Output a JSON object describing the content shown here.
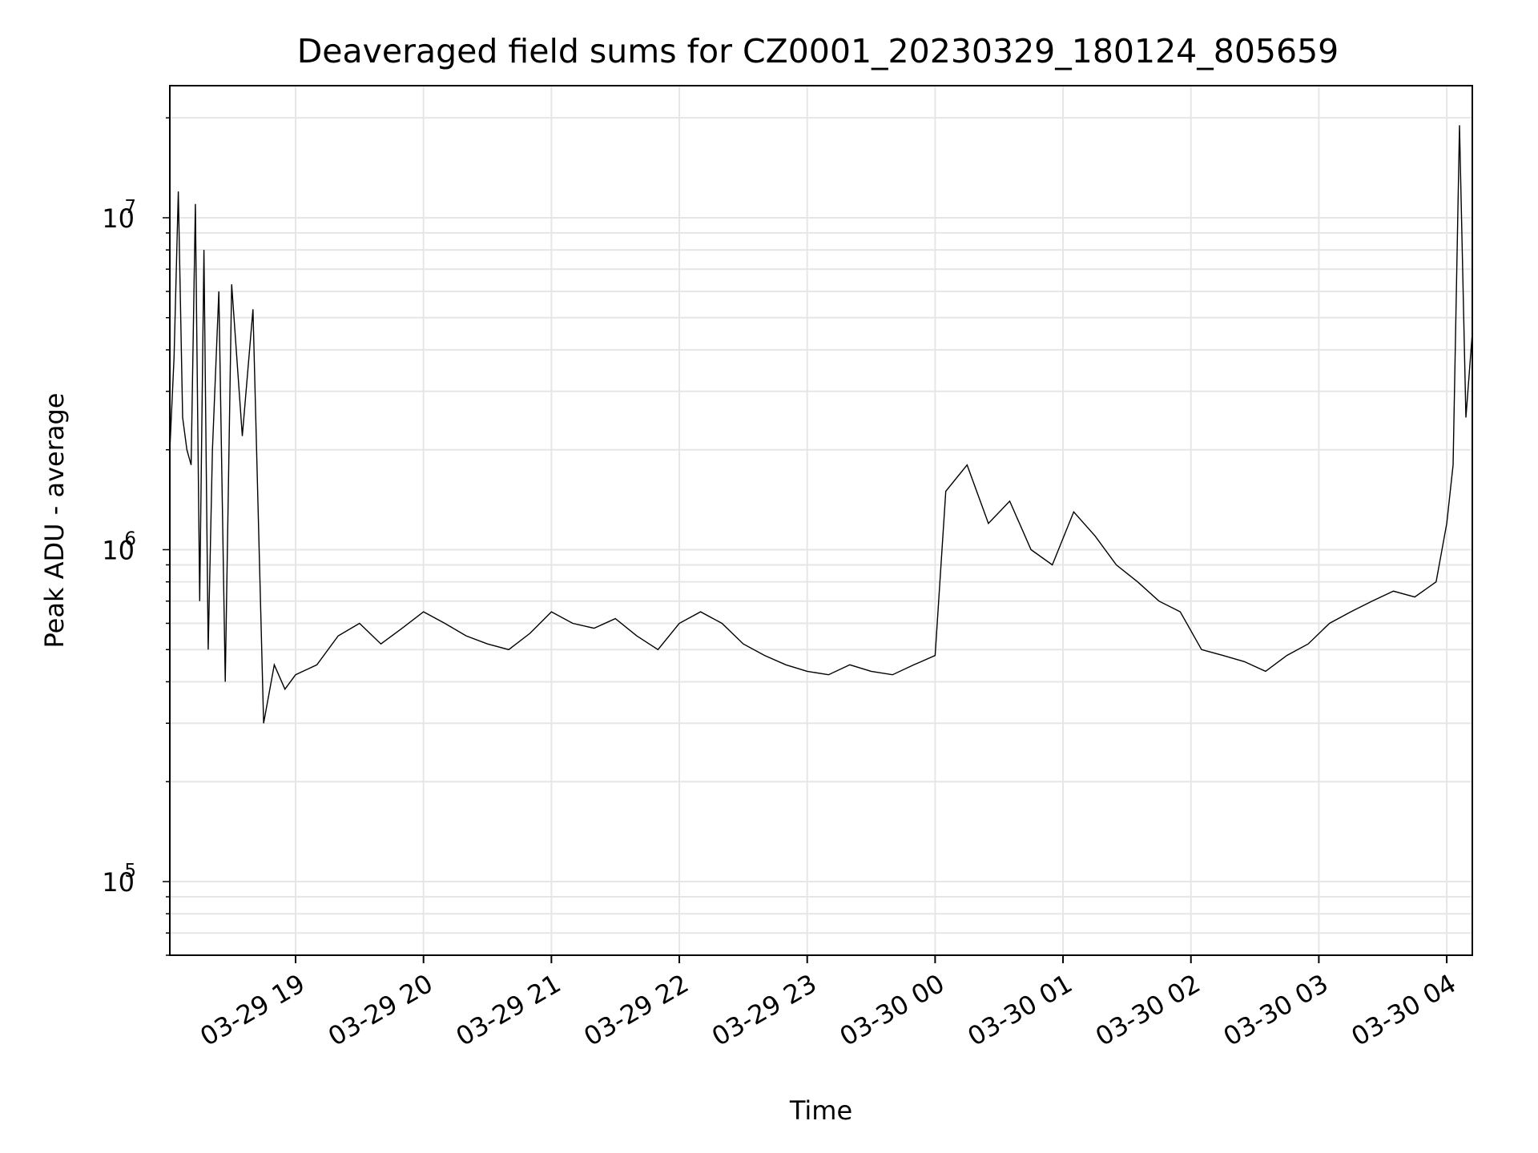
{
  "chart_data": {
    "type": "line",
    "title": "Deaveraged field sums for CZ0001_20230329_180124_805659",
    "xlabel": "Time",
    "ylabel": "Peak ADU - average",
    "yscale": "log",
    "ylim": [
      60000,
      25000000
    ],
    "xlim": [
      "2023-03-29 18:01",
      "2023-03-30 04:12"
    ],
    "grid": true,
    "line_color": "#000000",
    "x_ticks": [
      {
        "time": "2023-03-29 19:00",
        "label": "03-29 19"
      },
      {
        "time": "2023-03-29 20:00",
        "label": "03-29 20"
      },
      {
        "time": "2023-03-29 21:00",
        "label": "03-29 21"
      },
      {
        "time": "2023-03-29 22:00",
        "label": "03-29 22"
      },
      {
        "time": "2023-03-29 23:00",
        "label": "03-29 23"
      },
      {
        "time": "2023-03-30 00:00",
        "label": "03-30 00"
      },
      {
        "time": "2023-03-30 01:00",
        "label": "03-30 01"
      },
      {
        "time": "2023-03-30 02:00",
        "label": "03-30 02"
      },
      {
        "time": "2023-03-30 03:00",
        "label": "03-30 03"
      },
      {
        "time": "2023-03-30 04:00",
        "label": "03-30 04"
      }
    ],
    "y_ticks": [
      {
        "value": 100000,
        "base": "10",
        "exp": "5"
      },
      {
        "value": 1000000,
        "base": "10",
        "exp": "6"
      },
      {
        "value": 10000000,
        "base": "10",
        "exp": "7"
      }
    ],
    "series": [
      {
        "x": [
          "2023-03-29 18:01",
          "2023-03-29 18:03",
          "2023-03-29 18:05",
          "2023-03-29 18:07",
          "2023-03-29 18:09",
          "2023-03-29 18:11",
          "2023-03-29 18:13",
          "2023-03-29 18:15",
          "2023-03-29 18:17",
          "2023-03-29 18:19",
          "2023-03-29 18:21",
          "2023-03-29 18:24",
          "2023-03-29 18:27",
          "2023-03-29 18:30",
          "2023-03-29 18:35",
          "2023-03-29 18:40",
          "2023-03-29 18:45",
          "2023-03-29 18:50",
          "2023-03-29 18:55",
          "2023-03-29 19:00",
          "2023-03-29 19:10",
          "2023-03-29 19:20",
          "2023-03-29 19:30",
          "2023-03-29 19:40",
          "2023-03-29 19:50",
          "2023-03-29 20:00",
          "2023-03-29 20:10",
          "2023-03-29 20:20",
          "2023-03-29 20:30",
          "2023-03-29 20:40",
          "2023-03-29 20:50",
          "2023-03-29 21:00",
          "2023-03-29 21:10",
          "2023-03-29 21:20",
          "2023-03-29 21:30",
          "2023-03-29 21:40",
          "2023-03-29 21:50",
          "2023-03-29 22:00",
          "2023-03-29 22:10",
          "2023-03-29 22:20",
          "2023-03-29 22:30",
          "2023-03-29 22:40",
          "2023-03-29 22:50",
          "2023-03-29 23:00",
          "2023-03-29 23:10",
          "2023-03-29 23:20",
          "2023-03-29 23:30",
          "2023-03-29 23:40",
          "2023-03-29 23:50",
          "2023-03-30 00:00",
          "2023-03-30 00:05",
          "2023-03-30 00:15",
          "2023-03-30 00:25",
          "2023-03-30 00:35",
          "2023-03-30 00:45",
          "2023-03-30 00:55",
          "2023-03-30 01:05",
          "2023-03-30 01:15",
          "2023-03-30 01:25",
          "2023-03-30 01:35",
          "2023-03-30 01:45",
          "2023-03-30 01:55",
          "2023-03-30 02:05",
          "2023-03-30 02:15",
          "2023-03-30 02:25",
          "2023-03-30 02:35",
          "2023-03-30 02:45",
          "2023-03-30 02:55",
          "2023-03-30 03:05",
          "2023-03-30 03:15",
          "2023-03-30 03:25",
          "2023-03-30 03:35",
          "2023-03-30 03:45",
          "2023-03-30 03:55",
          "2023-03-30 04:00",
          "2023-03-30 04:03",
          "2023-03-30 04:06",
          "2023-03-30 04:09",
          "2023-03-30 04:12"
        ],
        "y": [
          2000000,
          3800000,
          12000000,
          2500000,
          2000000,
          1800000,
          11000000,
          700000,
          8000000,
          500000,
          2000000,
          6000000,
          400000,
          6300000,
          2200000,
          5300000,
          300000,
          450000,
          380000,
          420000,
          450000,
          550000,
          600000,
          520000,
          580000,
          650000,
          600000,
          550000,
          520000,
          500000,
          560000,
          650000,
          600000,
          580000,
          620000,
          550000,
          500000,
          600000,
          650000,
          600000,
          520000,
          480000,
          450000,
          430000,
          420000,
          450000,
          430000,
          420000,
          450000,
          480000,
          1500000,
          1800000,
          1200000,
          1400000,
          1000000,
          900000,
          1300000,
          1100000,
          900000,
          800000,
          700000,
          650000,
          500000,
          480000,
          460000,
          430000,
          480000,
          520000,
          600000,
          650000,
          700000,
          750000,
          720000,
          800000,
          1200000,
          1800000,
          19000000,
          2500000,
          4500000
        ]
      }
    ]
  }
}
